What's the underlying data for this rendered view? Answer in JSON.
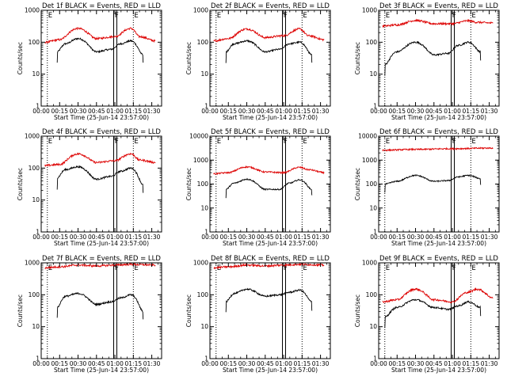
{
  "colors": {
    "events": "#000000",
    "lld": "#dd0000",
    "frame": "#000000",
    "background": "#ffffff"
  },
  "chart_data": [
    {
      "type": "line",
      "title": "Det 1f BLACK = Events, RED = LLD",
      "xlabel": "Start Time (25-Jun-14 23:57:00)",
      "ylabel": "Counts/sec",
      "y_scale": "log",
      "ylim": [
        1,
        1000
      ],
      "yticks": [
        "1",
        "10",
        "100",
        "1000"
      ],
      "xlim": [
        "00:00",
        "01:38"
      ],
      "xticks": [
        "00:00",
        "00:15",
        "00:30",
        "00:45",
        "01:00",
        "01:15",
        "01:30"
      ],
      "markers": [
        {
          "time": "00:05",
          "label": "E"
        },
        {
          "time": "00:59",
          "label": "F"
        },
        {
          "time": "01:15",
          "label": "E"
        }
      ],
      "series": [
        {
          "name": "Events",
          "color": "#000000",
          "x": [
            "00:13",
            "00:20",
            "00:30",
            "00:45",
            "00:57",
            "01:05",
            "01:13",
            "01:23"
          ],
          "y": [
            50,
            90,
            130,
            50,
            60,
            90,
            110,
            40
          ]
        },
        {
          "name": "LLD",
          "color": "#dd0000",
          "x": [
            "00:03",
            "00:15",
            "00:30",
            "00:45",
            "01:00",
            "01:13",
            "01:20",
            "01:33"
          ],
          "y": [
            100,
            120,
            270,
            130,
            150,
            270,
            150,
            110
          ]
        }
      ]
    },
    {
      "type": "line",
      "title": "Det 2f BLACK = Events, RED = LLD",
      "xlabel": "Start Time (25-Jun-14 23:57:00)",
      "ylabel": "Counts/sec",
      "y_scale": "log",
      "ylim": [
        1,
        1000
      ],
      "yticks": [
        "1",
        "10",
        "100",
        "1000"
      ],
      "xlim": [
        "00:00",
        "01:38"
      ],
      "xticks": [
        "00:00",
        "00:15",
        "00:30",
        "00:45",
        "01:00",
        "01:15",
        "01:30"
      ],
      "markers": [
        {
          "time": "00:05",
          "label": "E"
        },
        {
          "time": "00:59",
          "label": "F"
        },
        {
          "time": "01:15",
          "label": "E"
        }
      ],
      "series": [
        {
          "name": "Events",
          "color": "#000000",
          "x": [
            "00:13",
            "00:20",
            "00:30",
            "00:45",
            "00:57",
            "01:05",
            "01:13",
            "01:23"
          ],
          "y": [
            50,
            90,
            110,
            50,
            60,
            90,
            100,
            40
          ]
        },
        {
          "name": "LLD",
          "color": "#dd0000",
          "x": [
            "00:03",
            "00:15",
            "00:30",
            "00:45",
            "01:00",
            "01:13",
            "01:20",
            "01:33"
          ],
          "y": [
            110,
            130,
            260,
            140,
            160,
            260,
            160,
            120
          ]
        }
      ]
    },
    {
      "type": "line",
      "title": "Det 3f BLACK = Events, RED = LLD",
      "xlabel": "Start Time (25-Jun-14 23:57:00)",
      "ylabel": "Counts/sec",
      "y_scale": "log",
      "ylim": [
        1,
        1000
      ],
      "yticks": [
        "1",
        "10",
        "100",
        "1000"
      ],
      "xlim": [
        "00:00",
        "01:38"
      ],
      "xticks": [
        "00:00",
        "00:15",
        "00:30",
        "00:45",
        "01:00",
        "01:15",
        "01:30"
      ],
      "markers": [
        {
          "time": "00:05",
          "label": "E"
        },
        {
          "time": "00:59",
          "label": "F"
        },
        {
          "time": "01:15",
          "label": "E"
        }
      ],
      "series": [
        {
          "name": "Events",
          "color": "#000000",
          "x": [
            "00:05",
            "00:15",
            "00:30",
            "00:45",
            "00:57",
            "01:05",
            "01:13",
            "01:23"
          ],
          "y": [
            20,
            50,
            100,
            40,
            45,
            80,
            100,
            50
          ]
        },
        {
          "name": "LLD",
          "color": "#dd0000",
          "x": [
            "00:03",
            "00:15",
            "00:30",
            "00:45",
            "01:00",
            "01:13",
            "01:20",
            "01:33"
          ],
          "y": [
            320,
            350,
            480,
            380,
            380,
            470,
            420,
            400
          ]
        }
      ]
    },
    {
      "type": "line",
      "title": "Det 4f BLACK = Events, RED = LLD",
      "xlabel": "Start Time (25-Jun-14 23:57:00)",
      "ylabel": "Counts/sec",
      "y_scale": "log",
      "ylim": [
        1,
        1000
      ],
      "yticks": [
        "1",
        "10",
        "100",
        "1000"
      ],
      "xlim": [
        "00:00",
        "01:38"
      ],
      "xticks": [
        "00:00",
        "00:15",
        "00:30",
        "00:45",
        "01:00",
        "01:15",
        "01:30"
      ],
      "markers": [
        {
          "time": "00:05",
          "label": "E"
        },
        {
          "time": "00:59",
          "label": "F"
        },
        {
          "time": "01:15",
          "label": "E"
        }
      ],
      "series": [
        {
          "name": "Events",
          "color": "#000000",
          "x": [
            "00:13",
            "00:20",
            "00:30",
            "00:45",
            "00:57",
            "01:05",
            "01:13",
            "01:23"
          ],
          "y": [
            50,
            90,
            110,
            45,
            55,
            80,
            100,
            30
          ]
        },
        {
          "name": "LLD",
          "color": "#dd0000",
          "x": [
            "00:03",
            "00:15",
            "00:30",
            "00:45",
            "01:00",
            "01:13",
            "01:20",
            "01:33"
          ],
          "y": [
            120,
            130,
            280,
            150,
            170,
            280,
            180,
            150
          ]
        }
      ]
    },
    {
      "type": "line",
      "title": "Det 5f BLACK = Events, RED = LLD",
      "xlabel": "Start Time (25-Jun-14 23:57:00)",
      "ylabel": "Counts/sec",
      "y_scale": "log",
      "ylim": [
        1,
        10000
      ],
      "yticks": [
        "1",
        "10",
        "100",
        "1000",
        "10000"
      ],
      "xlim": [
        "00:00",
        "01:38"
      ],
      "xticks": [
        "00:00",
        "00:15",
        "00:30",
        "00:45",
        "01:00",
        "01:15",
        "01:30"
      ],
      "markers": [
        {
          "time": "00:05",
          "label": "E"
        },
        {
          "time": "00:59",
          "label": "F"
        },
        {
          "time": "01:15",
          "label": "E"
        }
      ],
      "series": [
        {
          "name": "Events",
          "color": "#000000",
          "x": [
            "00:13",
            "00:20",
            "00:30",
            "00:45",
            "00:57",
            "01:05",
            "01:13",
            "01:23"
          ],
          "y": [
            60,
            110,
            160,
            60,
            60,
            110,
            150,
            60
          ]
        },
        {
          "name": "LLD",
          "color": "#dd0000",
          "x": [
            "00:03",
            "00:15",
            "00:30",
            "00:45",
            "01:00",
            "01:13",
            "01:20",
            "01:33"
          ],
          "y": [
            270,
            300,
            520,
            320,
            300,
            500,
            400,
            300
          ]
        }
      ]
    },
    {
      "type": "line",
      "title": "Det 6f BLACK = Events, RED = LLD",
      "xlabel": "Start Time (25-Jun-14 23:57:00)",
      "ylabel": "Counts/sec",
      "y_scale": "log",
      "ylim": [
        1,
        10000
      ],
      "yticks": [
        "1",
        "10",
        "100",
        "1000",
        "10000"
      ],
      "xlim": [
        "00:00",
        "01:38"
      ],
      "xticks": [
        "00:00",
        "00:15",
        "00:30",
        "00:45",
        "01:00",
        "01:15",
        "01:30"
      ],
      "markers": [
        {
          "time": "00:05",
          "label": "E"
        },
        {
          "time": "00:59",
          "label": "F"
        },
        {
          "time": "01:15",
          "label": "E"
        }
      ],
      "series": [
        {
          "name": "Events",
          "color": "#000000",
          "x": [
            "00:05",
            "00:15",
            "00:30",
            "00:45",
            "00:57",
            "01:05",
            "01:13",
            "01:23"
          ],
          "y": [
            100,
            130,
            230,
            130,
            140,
            200,
            230,
            170
          ]
        },
        {
          "name": "LLD",
          "color": "#dd0000",
          "x": [
            "00:03",
            "00:30",
            "01:00",
            "01:33"
          ],
          "y": [
            2600,
            2800,
            3000,
            3200
          ]
        }
      ]
    },
    {
      "type": "line",
      "title": "Det 7f BLACK = Events, RED = LLD",
      "xlabel": "Start Time (25-Jun-14 23:57:00)",
      "ylabel": "Counts/sec",
      "y_scale": "log",
      "ylim": [
        1,
        1000
      ],
      "yticks": [
        "1",
        "10",
        "100",
        "1000"
      ],
      "xlim": [
        "00:00",
        "01:38"
      ],
      "xticks": [
        "00:00",
        "00:15",
        "00:30",
        "00:45",
        "01:00",
        "01:15",
        "01:30"
      ],
      "markers": [
        {
          "time": "00:05",
          "label": "E"
        },
        {
          "time": "00:59",
          "label": "F"
        },
        {
          "time": "01:15",
          "label": "E"
        }
      ],
      "series": [
        {
          "name": "Events",
          "color": "#000000",
          "x": [
            "00:13",
            "00:20",
            "00:30",
            "00:45",
            "00:57",
            "01:05",
            "01:13",
            "01:23"
          ],
          "y": [
            40,
            90,
            110,
            50,
            60,
            80,
            100,
            30
          ]
        },
        {
          "name": "LLD",
          "color": "#dd0000",
          "x": [
            "00:03",
            "00:15",
            "00:30",
            "00:45",
            "01:00",
            "01:13",
            "01:20",
            "01:33"
          ],
          "y": [
            700,
            750,
            850,
            800,
            850,
            900,
            880,
            850
          ]
        }
      ]
    },
    {
      "type": "line",
      "title": "Det 8f BLACK = Events, RED = LLD",
      "xlabel": "Start Time (25-Jun-14 23:57:00)",
      "ylabel": "Counts/sec",
      "y_scale": "log",
      "ylim": [
        1,
        1000
      ],
      "yticks": [
        "1",
        "10",
        "100",
        "1000"
      ],
      "xlim": [
        "00:00",
        "01:38"
      ],
      "xticks": [
        "00:00",
        "00:15",
        "00:30",
        "00:45",
        "01:00",
        "01:15",
        "01:30"
      ],
      "markers": [
        {
          "time": "00:05",
          "label": "E"
        },
        {
          "time": "00:59",
          "label": "F"
        },
        {
          "time": "01:15",
          "label": "E"
        }
      ],
      "series": [
        {
          "name": "Events",
          "color": "#000000",
          "x": [
            "00:13",
            "00:20",
            "00:30",
            "00:45",
            "00:57",
            "01:05",
            "01:13",
            "01:23"
          ],
          "y": [
            60,
            110,
            150,
            90,
            100,
            120,
            140,
            60
          ]
        },
        {
          "name": "LLD",
          "color": "#dd0000",
          "x": [
            "00:03",
            "00:15",
            "00:30",
            "00:45",
            "01:00",
            "01:13",
            "01:20",
            "01:33"
          ],
          "y": [
            700,
            750,
            850,
            800,
            850,
            900,
            880,
            850
          ]
        }
      ]
    },
    {
      "type": "line",
      "title": "Det 9f BLACK = Events, RED = LLD",
      "xlabel": "Start Time (25-Jun-14 23:57:00)",
      "ylabel": "Counts/sec",
      "y_scale": "log",
      "ylim": [
        1,
        1000
      ],
      "yticks": [
        "1",
        "10",
        "100",
        "1000"
      ],
      "xlim": [
        "00:00",
        "01:38"
      ],
      "xticks": [
        "00:00",
        "00:15",
        "00:30",
        "00:45",
        "01:00",
        "01:15",
        "01:30"
      ],
      "markers": [
        {
          "time": "00:05",
          "label": "E"
        },
        {
          "time": "00:59",
          "label": "F"
        },
        {
          "time": "01:15",
          "label": "E"
        }
      ],
      "series": [
        {
          "name": "Events",
          "color": "#000000",
          "x": [
            "00:05",
            "00:15",
            "00:30",
            "00:45",
            "00:57",
            "01:05",
            "01:13",
            "01:23"
          ],
          "y": [
            20,
            40,
            70,
            40,
            35,
            45,
            60,
            40
          ]
        },
        {
          "name": "LLD",
          "color": "#dd0000",
          "x": [
            "00:03",
            "00:15",
            "00:30",
            "00:45",
            "01:00",
            "01:13",
            "01:20",
            "01:33"
          ],
          "y": [
            60,
            70,
            150,
            70,
            60,
            120,
            150,
            80
          ]
        }
      ]
    }
  ]
}
